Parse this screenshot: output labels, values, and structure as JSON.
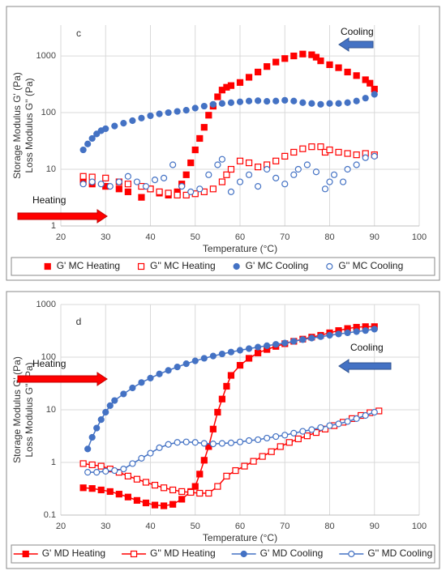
{
  "chart_data": [
    {
      "type": "scatter",
      "label": "c",
      "xlabel": "Temperature (°C)",
      "ylabel": [
        "Storage Modulus G' (Pa)",
        "Loss Modulus  G'' (Pa)"
      ],
      "annotations": [
        "Cooling",
        "Heating"
      ],
      "xlim": [
        20,
        100
      ],
      "xticks": [
        20,
        30,
        40,
        50,
        60,
        70,
        80,
        90,
        100
      ],
      "ylim": [
        1,
        3500
      ],
      "yticks": [
        1,
        10,
        100,
        1000
      ],
      "log_y": true,
      "grid": true,
      "lines": false,
      "legend": "bottom",
      "series": [
        {
          "name": "G' MC Heating",
          "color": "#ff0000",
          "marker": "square",
          "filled": true,
          "x": [
            25,
            27,
            30,
            33,
            35,
            38,
            40,
            42,
            44,
            46,
            47,
            48,
            49,
            50,
            51,
            52,
            53,
            54,
            55,
            56,
            57,
            58,
            60,
            62,
            64,
            66,
            68,
            70,
            72,
            74,
            76,
            77,
            78,
            80,
            82,
            84,
            86,
            88,
            89,
            90
          ],
          "values": [
            6,
            5.5,
            5,
            4.5,
            4,
            3.2,
            4.5,
            3.8,
            3.5,
            4,
            5.5,
            8,
            13,
            22,
            35,
            55,
            90,
            130,
            190,
            250,
            280,
            300,
            340,
            420,
            520,
            650,
            780,
            900,
            1000,
            1080,
            1050,
            950,
            820,
            700,
            620,
            520,
            450,
            380,
            330,
            260
          ]
        },
        {
          "name": "G'' MC Heating",
          "color": "#ff0000",
          "marker": "square",
          "filled": false,
          "x": [
            25,
            27,
            30,
            33,
            35,
            38,
            40,
            42,
            44,
            46,
            48,
            50,
            52,
            54,
            56,
            57,
            58,
            60,
            62,
            64,
            66,
            68,
            70,
            72,
            74,
            76,
            78,
            79,
            80,
            82,
            84,
            86,
            88,
            90
          ],
          "values": [
            7.5,
            7.3,
            7,
            6,
            5.5,
            5,
            4.5,
            4,
            3.8,
            3.5,
            3.5,
            3.7,
            4,
            4.5,
            6,
            8,
            10,
            14,
            13,
            11,
            12,
            14,
            17,
            20,
            23,
            25,
            25,
            20,
            22,
            20,
            19,
            18,
            19,
            18
          ]
        },
        {
          "name": "G' MC Cooling",
          "color": "#4472c4",
          "marker": "circle",
          "filled": true,
          "x": [
            25,
            26,
            27,
            28,
            29,
            30,
            32,
            34,
            36,
            38,
            40,
            42,
            44,
            46,
            48,
            50,
            52,
            54,
            56,
            58,
            60,
            62,
            64,
            66,
            68,
            70,
            72,
            74,
            76,
            78,
            80,
            82,
            84,
            86,
            88,
            90
          ],
          "values": [
            22,
            28,
            35,
            42,
            48,
            52,
            58,
            65,
            72,
            80,
            88,
            95,
            100,
            105,
            110,
            120,
            130,
            140,
            145,
            150,
            155,
            160,
            162,
            158,
            160,
            165,
            160,
            150,
            145,
            140,
            145,
            145,
            150,
            160,
            180,
            210
          ]
        },
        {
          "name": "G'' MC Cooling",
          "color": "#4472c4",
          "marker": "circle",
          "filled": false,
          "x": [
            25,
            27,
            29,
            31,
            33,
            35,
            37,
            39,
            41,
            43,
            45,
            47,
            49,
            51,
            53,
            55,
            56,
            58,
            60,
            62,
            64,
            66,
            68,
            70,
            72,
            73,
            75,
            77,
            79,
            80,
            81,
            83,
            84,
            86,
            88,
            90
          ],
          "values": [
            5.5,
            6,
            5.5,
            5,
            6,
            7.5,
            6,
            5,
            6.5,
            7,
            12,
            5,
            4,
            4.5,
            8,
            12,
            15,
            4,
            6,
            8,
            5,
            10,
            7,
            5.5,
            8,
            10,
            12,
            9,
            4.5,
            6,
            8,
            6,
            10,
            12,
            16,
            17
          ]
        }
      ]
    },
    {
      "type": "line",
      "label": "d",
      "xlabel": "Temperature (°C)",
      "ylabel": [
        "Storage Modulus G' (Pa)",
        "Loss Modulus G'' (Pa)"
      ],
      "annotations": [
        "Cooling",
        "Heating"
      ],
      "xlim": [
        20,
        100
      ],
      "xticks": [
        20,
        30,
        40,
        50,
        60,
        70,
        80,
        90,
        100
      ],
      "ylim": [
        0.1,
        1000
      ],
      "yticks": [
        0.1,
        1,
        10,
        100,
        1000
      ],
      "log_y": true,
      "grid": true,
      "lines": true,
      "legend": "bottom",
      "series": [
        {
          "name": "G' MD Heating",
          "color": "#ff0000",
          "marker": "square",
          "filled": true,
          "x": [
            25,
            27,
            29,
            31,
            33,
            35,
            37,
            39,
            41,
            43,
            45,
            47,
            49,
            50,
            51,
            52,
            53,
            54,
            55,
            56,
            57,
            58,
            60,
            62,
            64,
            66,
            68,
            70,
            72,
            74,
            76,
            78,
            80,
            82,
            84,
            86,
            88,
            90
          ],
          "values": [
            0.33,
            0.32,
            0.3,
            0.28,
            0.25,
            0.22,
            0.19,
            0.17,
            0.155,
            0.15,
            0.16,
            0.2,
            0.28,
            0.35,
            0.6,
            1.1,
            2,
            4.3,
            9,
            16,
            28,
            45,
            70,
            95,
            120,
            140,
            160,
            180,
            200,
            220,
            240,
            260,
            290,
            320,
            350,
            370,
            380,
            380
          ]
        },
        {
          "name": "G'' MD Heating",
          "color": "#ff0000",
          "marker": "square",
          "filled": false,
          "x": [
            25,
            27,
            29,
            31,
            33,
            35,
            37,
            39,
            41,
            43,
            45,
            47,
            49,
            51,
            53,
            55,
            57,
            59,
            61,
            63,
            65,
            67,
            69,
            71,
            73,
            75,
            77,
            79,
            81,
            83,
            85,
            87,
            89,
            91
          ],
          "values": [
            0.95,
            0.9,
            0.85,
            0.75,
            0.65,
            0.55,
            0.48,
            0.42,
            0.37,
            0.33,
            0.3,
            0.28,
            0.27,
            0.26,
            0.26,
            0.35,
            0.55,
            0.7,
            0.85,
            1.05,
            1.3,
            1.6,
            2,
            2.4,
            2.8,
            3.2,
            3.7,
            4.3,
            5,
            5.8,
            6.8,
            7.8,
            8.8,
            9.5
          ]
        },
        {
          "name": "G' MD Cooling",
          "color": "#4472c4",
          "marker": "circle",
          "filled": true,
          "x": [
            26,
            27,
            28,
            29,
            30,
            31,
            32,
            34,
            36,
            38,
            40,
            42,
            44,
            46,
            48,
            50,
            52,
            54,
            56,
            58,
            60,
            62,
            64,
            66,
            68,
            70,
            72,
            74,
            76,
            78,
            80,
            82,
            84,
            86,
            88,
            90
          ],
          "values": [
            1.8,
            3,
            4.5,
            6.5,
            9,
            12,
            15,
            20,
            26,
            33,
            40,
            48,
            56,
            65,
            75,
            85,
            95,
            105,
            115,
            125,
            135,
            145,
            155,
            165,
            175,
            185,
            200,
            215,
            230,
            245,
            260,
            275,
            290,
            305,
            320,
            340
          ]
        },
        {
          "name": "G'' MD Cooling",
          "color": "#4472c4",
          "marker": "circle",
          "filled": false,
          "x": [
            26,
            28,
            30,
            32,
            34,
            36,
            38,
            40,
            42,
            44,
            46,
            48,
            50,
            52,
            54,
            56,
            58,
            60,
            62,
            64,
            66,
            68,
            70,
            72,
            74,
            76,
            78,
            80,
            82,
            84,
            86,
            88,
            90
          ],
          "values": [
            0.65,
            0.65,
            0.68,
            0.7,
            0.75,
            0.95,
            1.2,
            1.5,
            1.9,
            2.2,
            2.4,
            2.45,
            2.4,
            2.3,
            2.25,
            2.3,
            2.35,
            2.45,
            2.6,
            2.7,
            2.9,
            3.1,
            3.3,
            3.6,
            3.9,
            4.2,
            4.6,
            5,
            5.4,
            6,
            6.8,
            7.8,
            9
          ]
        }
      ]
    }
  ]
}
